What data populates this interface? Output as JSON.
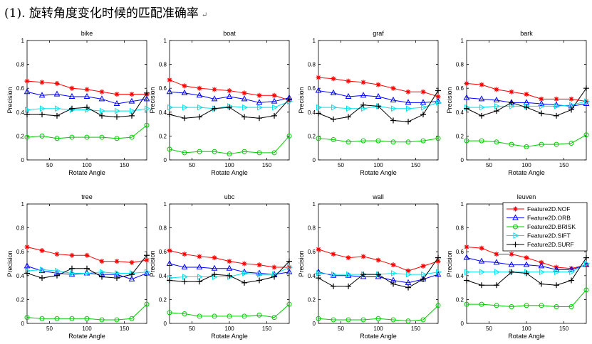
{
  "heading": "(1). 旋转角度变化时候的匹配准确率",
  "heading_mark": "↵",
  "colors": {
    "Feature2D.NOF": "#ff0000",
    "Feature2D.ORB": "#0000ff",
    "Feature2D.BRISK": "#00cc00",
    "Feature2D.SIFT": "#00e5ee",
    "Feature2D.SURF": "#000000"
  },
  "markers": {
    "Feature2D.NOF": "star",
    "Feature2D.ORB": "triangle-up",
    "Feature2D.BRISK": "circle",
    "Feature2D.SIFT": "triangle-right",
    "Feature2D.SURF": "plus"
  },
  "chart_data": [
    {
      "type": "line",
      "title": "bike",
      "xlabel": "Rotate Angle",
      "ylabel": "Precision",
      "xlim": [
        20,
        180
      ],
      "ylim": [
        0,
        1
      ],
      "xticks": [
        50,
        100,
        150
      ],
      "yticks": [
        0,
        0.2,
        0.4,
        0.6,
        0.8,
        1
      ],
      "x": [
        20,
        40,
        60,
        80,
        100,
        120,
        140,
        160,
        180
      ],
      "series": [
        {
          "name": "Feature2D.NOF",
          "values": [
            0.66,
            0.65,
            0.64,
            0.6,
            0.59,
            0.57,
            0.55,
            0.55,
            0.55
          ]
        },
        {
          "name": "Feature2D.ORB",
          "values": [
            0.57,
            0.54,
            0.55,
            0.53,
            0.53,
            0.51,
            0.47,
            0.49,
            0.51
          ]
        },
        {
          "name": "Feature2D.BRISK",
          "values": [
            0.19,
            0.2,
            0.18,
            0.19,
            0.19,
            0.19,
            0.18,
            0.19,
            0.29
          ]
        },
        {
          "name": "Feature2D.SIFT",
          "values": [
            0.42,
            0.43,
            0.43,
            0.42,
            0.42,
            0.41,
            0.41,
            0.41,
            0.43
          ]
        },
        {
          "name": "Feature2D.SURF",
          "values": [
            0.38,
            0.38,
            0.37,
            0.43,
            0.44,
            0.37,
            0.36,
            0.37,
            0.56
          ]
        }
      ]
    },
    {
      "type": "line",
      "title": "boat",
      "xlabel": "Rotate Angle",
      "ylabel": "Precision",
      "xlim": [
        20,
        180
      ],
      "ylim": [
        0,
        1
      ],
      "xticks": [
        50,
        100,
        150
      ],
      "yticks": [
        0,
        0.2,
        0.4,
        0.6,
        0.8,
        1
      ],
      "x": [
        20,
        40,
        60,
        80,
        100,
        120,
        140,
        160,
        180
      ],
      "series": [
        {
          "name": "Feature2D.NOF",
          "values": [
            0.67,
            0.62,
            0.6,
            0.59,
            0.58,
            0.56,
            0.54,
            0.54,
            0.5
          ]
        },
        {
          "name": "Feature2D.ORB",
          "values": [
            0.57,
            0.56,
            0.54,
            0.51,
            0.53,
            0.51,
            0.48,
            0.49,
            0.52
          ]
        },
        {
          "name": "Feature2D.BRISK",
          "values": [
            0.09,
            0.06,
            0.07,
            0.07,
            0.05,
            0.07,
            0.06,
            0.06,
            0.2
          ]
        },
        {
          "name": "Feature2D.SIFT",
          "values": [
            0.44,
            0.44,
            0.44,
            0.43,
            0.45,
            0.44,
            0.44,
            0.44,
            0.49
          ]
        },
        {
          "name": "Feature2D.SURF",
          "values": [
            0.38,
            0.35,
            0.36,
            0.43,
            0.44,
            0.36,
            0.35,
            0.37,
            0.51
          ]
        }
      ]
    },
    {
      "type": "line",
      "title": "graf",
      "xlabel": "Rotate Angle",
      "ylabel": "Precision",
      "xlim": [
        20,
        180
      ],
      "ylim": [
        0,
        1
      ],
      "xticks": [
        50,
        100,
        150
      ],
      "yticks": [
        0,
        0.2,
        0.4,
        0.6,
        0.8,
        1
      ],
      "x": [
        20,
        40,
        60,
        80,
        100,
        120,
        140,
        160,
        180
      ],
      "series": [
        {
          "name": "Feature2D.NOF",
          "values": [
            0.69,
            0.68,
            0.66,
            0.65,
            0.63,
            0.6,
            0.57,
            0.57,
            0.53
          ]
        },
        {
          "name": "Feature2D.ORB",
          "values": [
            0.58,
            0.56,
            0.53,
            0.54,
            0.53,
            0.5,
            0.48,
            0.48,
            0.49
          ]
        },
        {
          "name": "Feature2D.BRISK",
          "values": [
            0.18,
            0.17,
            0.15,
            0.16,
            0.16,
            0.15,
            0.15,
            0.16,
            0.18
          ]
        },
        {
          "name": "Feature2D.SIFT",
          "values": [
            0.44,
            0.44,
            0.43,
            0.43,
            0.45,
            0.43,
            0.43,
            0.44,
            0.48
          ]
        },
        {
          "name": "Feature2D.SURF",
          "values": [
            0.39,
            0.34,
            0.36,
            0.46,
            0.45,
            0.33,
            0.32,
            0.38,
            0.58
          ]
        }
      ]
    },
    {
      "type": "line",
      "title": "bark",
      "xlabel": "Rotate Angle",
      "ylabel": "Precision",
      "xlim": [
        20,
        180
      ],
      "ylim": [
        0,
        1
      ],
      "xticks": [
        50,
        100,
        150
      ],
      "yticks": [
        0,
        0.2,
        0.4,
        0.6,
        0.8,
        1
      ],
      "x": [
        20,
        40,
        60,
        80,
        100,
        120,
        140,
        160,
        180
      ],
      "series": [
        {
          "name": "Feature2D.NOF",
          "values": [
            0.64,
            0.63,
            0.59,
            0.57,
            0.55,
            0.51,
            0.51,
            0.51,
            0.49
          ]
        },
        {
          "name": "Feature2D.ORB",
          "values": [
            0.52,
            0.51,
            0.5,
            0.48,
            0.48,
            0.47,
            0.46,
            0.45,
            0.47
          ]
        },
        {
          "name": "Feature2D.BRISK",
          "values": [
            0.16,
            0.16,
            0.15,
            0.13,
            0.11,
            0.13,
            0.13,
            0.14,
            0.21
          ]
        },
        {
          "name": "Feature2D.SIFT",
          "values": [
            0.44,
            0.44,
            0.45,
            0.45,
            0.45,
            0.45,
            0.45,
            0.46,
            0.49
          ]
        },
        {
          "name": "Feature2D.SURF",
          "values": [
            0.43,
            0.37,
            0.41,
            0.48,
            0.44,
            0.39,
            0.37,
            0.42,
            0.6
          ]
        }
      ]
    },
    {
      "type": "line",
      "title": "tree",
      "xlabel": "Rotate Angle",
      "ylabel": "Precision",
      "xlim": [
        20,
        180
      ],
      "ylim": [
        0,
        1
      ],
      "xticks": [
        50,
        100,
        150
      ],
      "yticks": [
        0,
        0.2,
        0.4,
        0.6,
        0.8,
        1
      ],
      "x": [
        20,
        40,
        60,
        80,
        100,
        120,
        140,
        160,
        180
      ],
      "series": [
        {
          "name": "Feature2D.NOF",
          "values": [
            0.64,
            0.61,
            0.58,
            0.57,
            0.57,
            0.52,
            0.52,
            0.51,
            0.53
          ]
        },
        {
          "name": "Feature2D.ORB",
          "values": [
            0.48,
            0.44,
            0.42,
            0.41,
            0.42,
            0.41,
            0.41,
            0.37,
            0.42
          ]
        },
        {
          "name": "Feature2D.BRISK",
          "values": [
            0.05,
            0.04,
            0.04,
            0.04,
            0.04,
            0.03,
            0.03,
            0.04,
            0.16
          ]
        },
        {
          "name": "Feature2D.SIFT",
          "values": [
            0.44,
            0.45,
            0.44,
            0.42,
            0.42,
            0.43,
            0.42,
            0.42,
            0.43
          ]
        },
        {
          "name": "Feature2D.SURF",
          "values": [
            0.42,
            0.38,
            0.4,
            0.46,
            0.46,
            0.39,
            0.38,
            0.41,
            0.57
          ]
        }
      ]
    },
    {
      "type": "line",
      "title": "ubc",
      "xlabel": "Rotate Angle",
      "ylabel": "Precision",
      "xlim": [
        20,
        180
      ],
      "ylim": [
        0,
        1
      ],
      "xticks": [
        50,
        100,
        150
      ],
      "yticks": [
        0,
        0.2,
        0.4,
        0.6,
        0.8,
        1
      ],
      "x": [
        20,
        40,
        60,
        80,
        100,
        120,
        140,
        160,
        180
      ],
      "series": [
        {
          "name": "Feature2D.NOF",
          "values": [
            0.61,
            0.58,
            0.56,
            0.55,
            0.52,
            0.5,
            0.49,
            0.47,
            0.47
          ]
        },
        {
          "name": "Feature2D.ORB",
          "values": [
            0.5,
            0.47,
            0.47,
            0.46,
            0.46,
            0.43,
            0.42,
            0.41,
            0.43
          ]
        },
        {
          "name": "Feature2D.BRISK",
          "values": [
            0.09,
            0.08,
            0.06,
            0.06,
            0.06,
            0.06,
            0.07,
            0.05,
            0.16
          ]
        },
        {
          "name": "Feature2D.SIFT",
          "values": [
            0.38,
            0.39,
            0.39,
            0.39,
            0.39,
            0.42,
            0.41,
            0.41,
            0.47
          ]
        },
        {
          "name": "Feature2D.SURF",
          "values": [
            0.36,
            0.35,
            0.35,
            0.41,
            0.4,
            0.34,
            0.36,
            0.39,
            0.52
          ]
        }
      ]
    },
    {
      "type": "line",
      "title": "wall",
      "xlabel": "Rotate Angle",
      "ylabel": "Precision",
      "xlim": [
        20,
        180
      ],
      "ylim": [
        0,
        1
      ],
      "xticks": [
        50,
        100,
        150
      ],
      "yticks": [
        0,
        0.2,
        0.4,
        0.6,
        0.8,
        1
      ],
      "x": [
        20,
        40,
        60,
        80,
        100,
        120,
        140,
        160,
        180
      ],
      "series": [
        {
          "name": "Feature2D.NOF",
          "values": [
            0.62,
            0.58,
            0.55,
            0.56,
            0.53,
            0.49,
            0.44,
            0.48,
            0.52
          ]
        },
        {
          "name": "Feature2D.ORB",
          "values": [
            0.43,
            0.4,
            0.4,
            0.39,
            0.39,
            0.36,
            0.34,
            0.37,
            0.41
          ]
        },
        {
          "name": "Feature2D.BRISK",
          "values": [
            0.04,
            0.03,
            0.03,
            0.03,
            0.04,
            0.03,
            0.02,
            0.03,
            0.15
          ]
        },
        {
          "name": "Feature2D.SIFT",
          "values": [
            0.42,
            0.41,
            0.41,
            0.41,
            0.41,
            0.42,
            0.41,
            0.41,
            0.43
          ]
        },
        {
          "name": "Feature2D.SURF",
          "values": [
            0.38,
            0.31,
            0.31,
            0.41,
            0.41,
            0.33,
            0.3,
            0.37,
            0.55
          ]
        }
      ]
    },
    {
      "type": "line",
      "title": "leuven",
      "xlabel": "Rotate Angle",
      "ylabel": "Precision",
      "xlim": [
        20,
        180
      ],
      "ylim": [
        0,
        1
      ],
      "xticks": [
        50,
        100,
        150
      ],
      "yticks": [
        0,
        0.2,
        0.4,
        0.6,
        0.8,
        1
      ],
      "x": [
        20,
        40,
        60,
        80,
        100,
        120,
        140,
        160,
        180
      ],
      "legend": "top-right",
      "series": [
        {
          "name": "Feature2D.NOF",
          "values": [
            0.64,
            0.63,
            0.58,
            0.58,
            0.55,
            0.51,
            0.47,
            0.46,
            0.49
          ]
        },
        {
          "name": "Feature2D.ORB",
          "values": [
            0.55,
            0.52,
            0.51,
            0.49,
            0.49,
            0.48,
            0.45,
            0.45,
            0.49
          ]
        },
        {
          "name": "Feature2D.BRISK",
          "values": [
            0.16,
            0.16,
            0.15,
            0.14,
            0.15,
            0.15,
            0.14,
            0.14,
            0.28
          ]
        },
        {
          "name": "Feature2D.SIFT",
          "values": [
            0.43,
            0.43,
            0.43,
            0.43,
            0.43,
            0.43,
            0.43,
            0.43,
            0.5
          ]
        },
        {
          "name": "Feature2D.SURF",
          "values": [
            0.36,
            0.32,
            0.32,
            0.43,
            0.42,
            0.33,
            0.32,
            0.36,
            0.55
          ]
        }
      ]
    }
  ]
}
